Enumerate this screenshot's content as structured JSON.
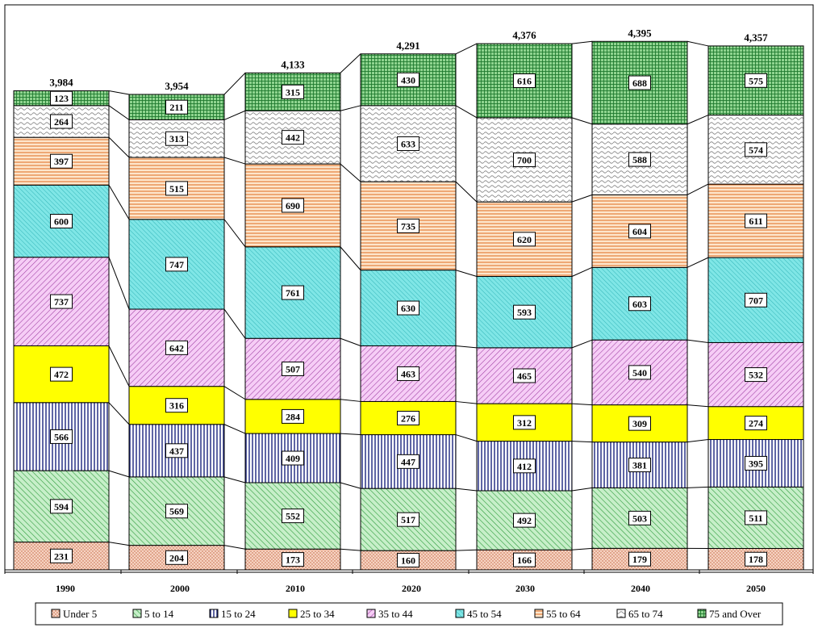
{
  "chart_data": {
    "type": "bar",
    "stacked": true,
    "title": "",
    "xlabel": "",
    "ylabel": "",
    "ylim": [
      0,
      4750
    ],
    "grid": false,
    "legend_position": "bottom",
    "categories": [
      "1990",
      "2000",
      "2010",
      "2020",
      "2030",
      "2040",
      "2050"
    ],
    "totals": [
      "3,984",
      "3,954",
      "4,133",
      "4,291",
      "4,376",
      "4,395",
      "4,357"
    ],
    "series": [
      {
        "name": "Under 5",
        "values": [
          231,
          204,
          173,
          160,
          166,
          179,
          178
        ],
        "color": "#f4c8b4",
        "pattern": "dots"
      },
      {
        "name": "5 to 14",
        "values": [
          594,
          569,
          552,
          517,
          492,
          503,
          511
        ],
        "color": "#c2ecc4",
        "pattern": "diag-up"
      },
      {
        "name": "15 to 24",
        "values": [
          566,
          437,
          409,
          447,
          412,
          381,
          395
        ],
        "color": "#ffffff",
        "pattern": "vertical-navy"
      },
      {
        "name": "25 to 34",
        "values": [
          472,
          316,
          284,
          276,
          312,
          309,
          274
        ],
        "color": "#ffff00",
        "pattern": "solid"
      },
      {
        "name": "35 to 44",
        "values": [
          737,
          642,
          507,
          463,
          465,
          540,
          532
        ],
        "color": "#f4c4f4",
        "pattern": "diag-down"
      },
      {
        "name": "45 to 54",
        "values": [
          600,
          747,
          761,
          630,
          593,
          603,
          707
        ],
        "color": "#7fe6e6",
        "pattern": "diag-up-fine"
      },
      {
        "name": "55 to 64",
        "values": [
          397,
          515,
          690,
          735,
          620,
          604,
          611
        ],
        "color": "#fde3c8",
        "pattern": "horizontal"
      },
      {
        "name": "65 to 74",
        "values": [
          264,
          313,
          442,
          633,
          700,
          588,
          574
        ],
        "color": "#ffffff",
        "pattern": "waves"
      },
      {
        "name": "75 and Over",
        "values": [
          123,
          211,
          315,
          430,
          616,
          688,
          575
        ],
        "color": "#8fd48f",
        "pattern": "grid"
      }
    ]
  }
}
